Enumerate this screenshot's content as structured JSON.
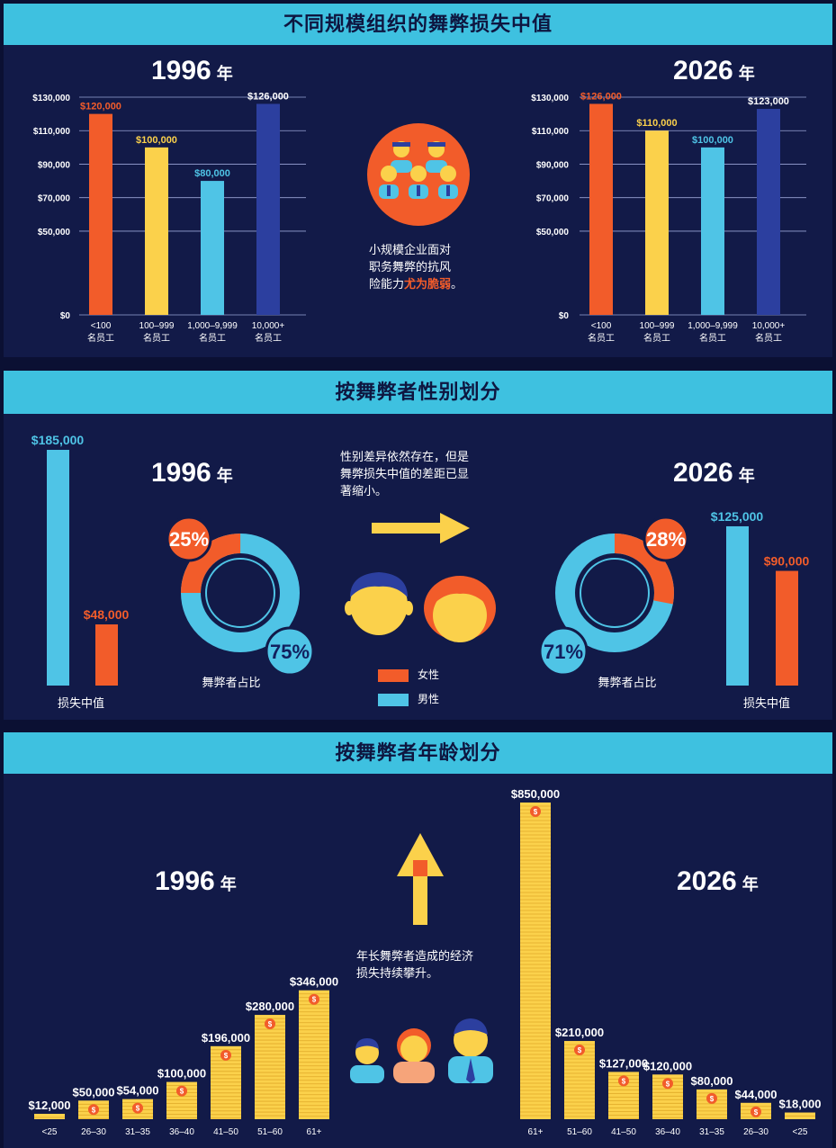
{
  "colors": {
    "orange": "#f25c2a",
    "yellow": "#fbd14b",
    "cyan": "#4fc4e6",
    "blue": "#2c3f9f",
    "bg": "#121a48"
  },
  "sections": {
    "size_title": "不同规模组织的舞弊损失中值",
    "gender_title": "按舞弊者性别划分",
    "age_title": "按舞弊者年龄划分"
  },
  "year_suffix": "年",
  "size": {
    "note_line1": "小规模企业面对",
    "note_line2": "职务舞弊的抗风",
    "note_line3_prefix": "险能力",
    "note_line3_hl": "尤为脆弱",
    "note_line3_suffix": "。",
    "icon": "employees-group-icon"
  },
  "gender": {
    "note_line1": "性别差异依然存在，但是",
    "note_line2": "舞弊损失中值的差距已显",
    "note_line3": "著缩小。",
    "loss_label": "损失中值",
    "share_label": "舞弊者占比",
    "legend_female": "女性",
    "legend_male": "男性",
    "icon_male": "male-face-icon",
    "icon_female": "female-face-icon",
    "icon_arrow": "right-arrow-icon"
  },
  "age": {
    "note_line1": "年长舞弊者造成的经济",
    "note_line2": "损失持续攀升。",
    "icon_arrow": "up-arrow-icon",
    "icon_people": "three-people-icon"
  },
  "chart_data": [
    {
      "id": "size_1996",
      "type": "bar",
      "title": "1996",
      "categories": [
        "<100|名员工",
        "100–999|名员工",
        "1,000–9,999|名员工",
        "10,000+|名员工"
      ],
      "values": [
        120000,
        100000,
        80000,
        126000
      ],
      "value_labels": [
        "$120,000",
        "$100,000",
        "$80,000",
        "$126,000"
      ],
      "ylim": [
        0,
        130000
      ],
      "yticks": [
        "$0",
        "$50,000",
        "$70,000",
        "$90,000",
        "$110,000",
        "$130,000"
      ],
      "ytick_values": [
        0,
        50000,
        70000,
        90000,
        110000,
        130000
      ],
      "bar_colors": [
        "#f25c2a",
        "#fbd14b",
        "#4fc4e6",
        "#2c3f9f"
      ]
    },
    {
      "id": "size_2026",
      "type": "bar",
      "title": "2026",
      "categories": [
        "<100|名员工",
        "100–999|名员工",
        "1,000–9,999|名员工",
        "10,000+|名员工"
      ],
      "values": [
        126000,
        110000,
        100000,
        123000
      ],
      "value_labels": [
        "$126,000",
        "$110,000",
        "$100,000",
        "$123,000"
      ],
      "ylim": [
        0,
        130000
      ],
      "yticks": [
        "$0",
        "$50,000",
        "$70,000",
        "$90,000",
        "$110,000",
        "$130,000"
      ],
      "ytick_values": [
        0,
        50000,
        70000,
        90000,
        110000,
        130000
      ],
      "bar_colors": [
        "#f25c2a",
        "#fbd14b",
        "#4fc4e6",
        "#2c3f9f"
      ]
    },
    {
      "id": "gender_1996",
      "type": "bar",
      "title": "1996",
      "loss_values": [
        185000,
        48000
      ],
      "loss_labels": [
        "$185,000",
        "$48,000"
      ],
      "loss_colors": [
        "#4fc4e6",
        "#f25c2a"
      ],
      "pie": {
        "female": 25,
        "male": 75,
        "female_label": "25%",
        "male_label": "75%"
      }
    },
    {
      "id": "gender_2026",
      "type": "bar",
      "title": "2026",
      "loss_values": [
        125000,
        90000
      ],
      "loss_labels": [
        "$125,000",
        "$90,000"
      ],
      "loss_colors": [
        "#4fc4e6",
        "#f25c2a"
      ],
      "pie": {
        "female": 28,
        "male": 71,
        "female_label": "28%",
        "male_label": "71%"
      }
    },
    {
      "id": "age_1996",
      "type": "bar",
      "title": "1996",
      "categories": [
        "<25",
        "26–30",
        "31–35",
        "36–40",
        "41–50",
        "51–60",
        "61+"
      ],
      "values": [
        12000,
        50000,
        54000,
        100000,
        196000,
        280000,
        346000
      ],
      "value_labels": [
        "$12,000",
        "$50,000",
        "$54,000",
        "$100,000",
        "$196,000",
        "$280,000",
        "$346,000"
      ]
    },
    {
      "id": "age_2026",
      "type": "bar",
      "title": "2026",
      "categories": [
        "61+",
        "51–60",
        "41–50",
        "36–40",
        "31–35",
        "26–30",
        "<25"
      ],
      "values": [
        850000,
        210000,
        127000,
        120000,
        80000,
        44000,
        18000
      ],
      "value_labels": [
        "$850,000",
        "$210,000",
        "$127,000",
        "$120,000",
        "$80,000",
        "$44,000",
        "$18,000"
      ]
    }
  ]
}
